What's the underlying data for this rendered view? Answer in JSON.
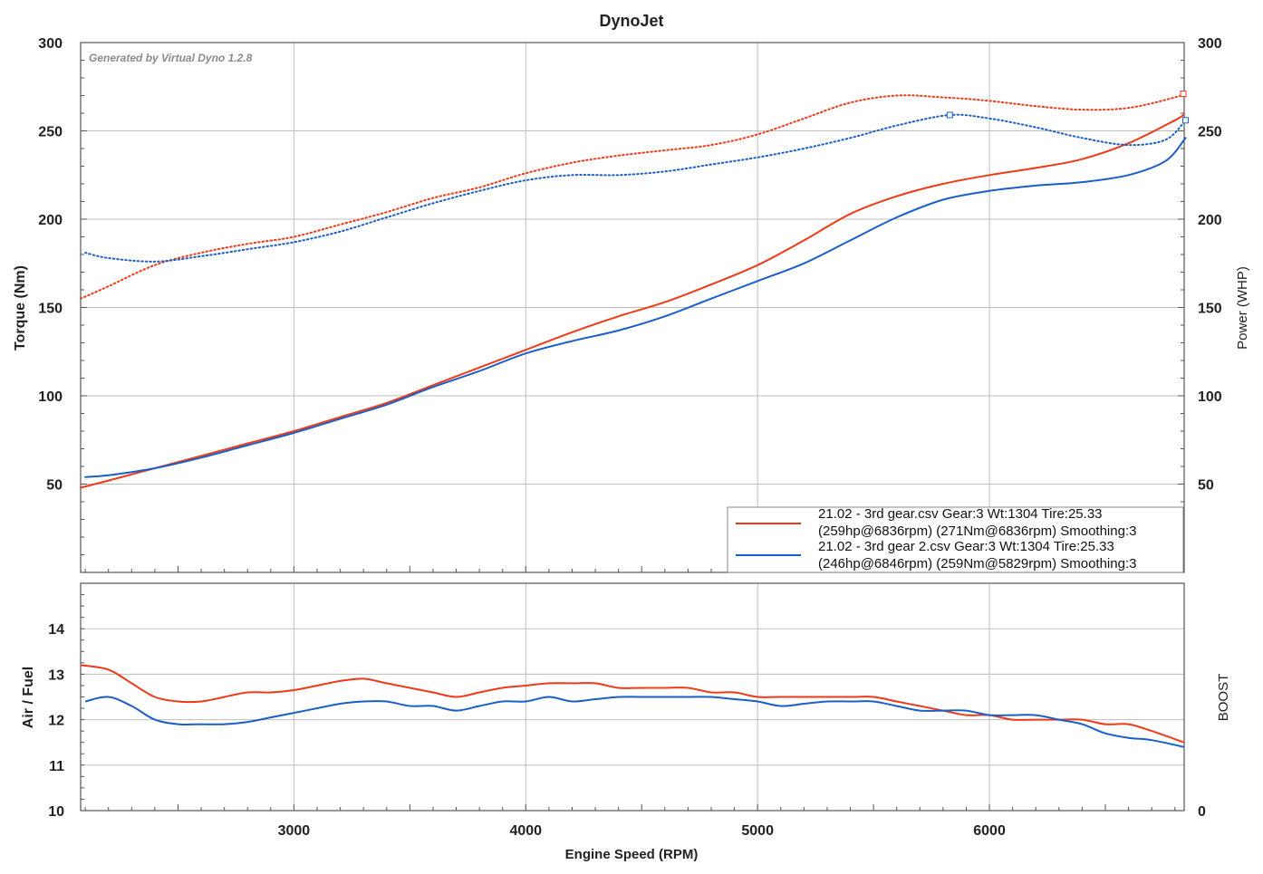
{
  "chart_data": [
    {
      "type": "line",
      "title": "DynoJet",
      "watermark": "Generated by Virtual Dyno 1.2.8",
      "xlabel": "Engine Speed (RPM)",
      "ylabel_left": "Torque (Nm)",
      "ylabel_right": "Power (WHP)",
      "xlim": [
        2080,
        6840
      ],
      "xticks": [
        3000,
        4000,
        5000,
        6000
      ],
      "ylim": [
        0,
        300
      ],
      "yticks_left": [
        50,
        100,
        150,
        200,
        250,
        300
      ],
      "yticks_right": [
        50,
        100,
        150,
        200,
        250,
        300
      ],
      "grid": true,
      "legend_position": "bottom-right",
      "legend": [
        {
          "line1": "21.02 - 3rd gear.csv Gear:3 Wt:1304 Tire:25.33",
          "line2": "(259hp@6836rpm) (271Nm@6836rpm) Smoothing:3",
          "color": "#f03a17"
        },
        {
          "line1": "21.02 - 3rd gear 2.csv Gear:3 Wt:1304 Tire:25.33",
          "line2": "(246hp@6846rpm) (259Nm@5829rpm) Smoothing:3",
          "color": "#1a5fc7"
        }
      ],
      "series": [
        {
          "role": "power",
          "color": "#f03a17",
          "style": "solid",
          "x": [
            2080,
            2200,
            2400,
            2600,
            2800,
            3000,
            3200,
            3400,
            3600,
            3800,
            4000,
            4200,
            4400,
            4600,
            4800,
            5000,
            5200,
            5400,
            5600,
            5800,
            6000,
            6200,
            6400,
            6600,
            6800,
            6836
          ],
          "y": [
            48,
            52,
            59,
            66,
            73,
            80,
            88,
            96,
            106,
            116,
            126,
            136,
            145,
            153,
            163,
            174,
            188,
            203,
            213,
            220,
            225,
            229,
            234,
            243,
            256,
            259
          ]
        },
        {
          "role": "power",
          "color": "#1a5fc7",
          "style": "solid",
          "x": [
            2100,
            2200,
            2400,
            2600,
            2800,
            3000,
            3200,
            3400,
            3600,
            3800,
            4000,
            4200,
            4400,
            4600,
            4800,
            5000,
            5200,
            5400,
            5600,
            5800,
            6000,
            6200,
            6400,
            6600,
            6760,
            6846
          ],
          "y": [
            54,
            55,
            59,
            65,
            72,
            79,
            87,
            95,
            105,
            114,
            124,
            131,
            137,
            145,
            155,
            165,
            175,
            188,
            201,
            211,
            216,
            219,
            221,
            225,
            233,
            246
          ]
        },
        {
          "role": "torque",
          "color": "#f03a17",
          "style": "dotted",
          "x": [
            2080,
            2200,
            2400,
            2600,
            2800,
            3000,
            3200,
            3400,
            3600,
            3800,
            4000,
            4200,
            4400,
            4600,
            4800,
            5000,
            5200,
            5400,
            5600,
            5800,
            6000,
            6200,
            6400,
            6600,
            6800,
            6836
          ],
          "y": [
            155,
            162,
            174,
            181,
            186,
            190,
            197,
            204,
            212,
            218,
            226,
            232,
            236,
            239,
            242,
            248,
            257,
            266,
            270,
            269,
            267,
            264,
            262,
            263,
            269,
            271
          ]
        },
        {
          "role": "torque",
          "color": "#1a5fc7",
          "style": "dotted",
          "x": [
            2100,
            2200,
            2400,
            2600,
            2800,
            3000,
            3200,
            3400,
            3600,
            3800,
            4000,
            4200,
            4400,
            4600,
            4800,
            5000,
            5200,
            5400,
            5600,
            5829,
            6000,
            6200,
            6400,
            6600,
            6760,
            6846
          ],
          "y": [
            181,
            178,
            176,
            179,
            183,
            187,
            193,
            201,
            209,
            216,
            222,
            225,
            225,
            227,
            231,
            235,
            240,
            246,
            253,
            259,
            257,
            252,
            246,
            242,
            245,
            256
          ]
        }
      ]
    },
    {
      "type": "line",
      "ylabel_left": "Air / Fuel",
      "ylabel_right": "BOOST",
      "ylim": [
        10,
        15
      ],
      "yticks_left": [
        10,
        11,
        12,
        13,
        14
      ],
      "right_tick": "0",
      "grid": true,
      "series": [
        {
          "color": "#f03a17",
          "x": [
            2080,
            2200,
            2300,
            2400,
            2500,
            2600,
            2700,
            2800,
            2900,
            3000,
            3100,
            3200,
            3300,
            3400,
            3500,
            3600,
            3700,
            3800,
            3900,
            4000,
            4100,
            4200,
            4300,
            4400,
            4500,
            4600,
            4700,
            4800,
            4900,
            5000,
            5100,
            5200,
            5300,
            5400,
            5500,
            5600,
            5700,
            5800,
            5900,
            6000,
            6100,
            6200,
            6300,
            6400,
            6500,
            6600,
            6700,
            6840
          ],
          "y": [
            13.2,
            13.1,
            12.8,
            12.5,
            12.4,
            12.4,
            12.5,
            12.6,
            12.6,
            12.65,
            12.75,
            12.85,
            12.9,
            12.8,
            12.7,
            12.6,
            12.5,
            12.6,
            12.7,
            12.75,
            12.8,
            12.8,
            12.8,
            12.7,
            12.7,
            12.7,
            12.7,
            12.6,
            12.6,
            12.5,
            12.5,
            12.5,
            12.5,
            12.5,
            12.5,
            12.4,
            12.3,
            12.2,
            12.1,
            12.1,
            12.0,
            12.0,
            12.0,
            12.0,
            11.9,
            11.9,
            11.75,
            11.5
          ]
        },
        {
          "color": "#1a5fc7",
          "x": [
            2100,
            2200,
            2300,
            2400,
            2500,
            2600,
            2700,
            2800,
            2900,
            3000,
            3100,
            3200,
            3300,
            3400,
            3500,
            3600,
            3700,
            3800,
            3900,
            4000,
            4100,
            4200,
            4300,
            4400,
            4500,
            4600,
            4700,
            4800,
            4900,
            5000,
            5100,
            5200,
            5300,
            5400,
            5500,
            5600,
            5700,
            5800,
            5900,
            6000,
            6100,
            6200,
            6300,
            6400,
            6500,
            6600,
            6700,
            6840
          ],
          "y": [
            12.4,
            12.5,
            12.3,
            12.0,
            11.9,
            11.9,
            11.9,
            11.95,
            12.05,
            12.15,
            12.25,
            12.35,
            12.4,
            12.4,
            12.3,
            12.3,
            12.2,
            12.3,
            12.4,
            12.4,
            12.5,
            12.4,
            12.45,
            12.5,
            12.5,
            12.5,
            12.5,
            12.5,
            12.45,
            12.4,
            12.3,
            12.35,
            12.4,
            12.4,
            12.4,
            12.3,
            12.2,
            12.2,
            12.2,
            12.1,
            12.1,
            12.1,
            12.0,
            11.9,
            11.7,
            11.6,
            11.55,
            11.4
          ]
        }
      ]
    }
  ]
}
